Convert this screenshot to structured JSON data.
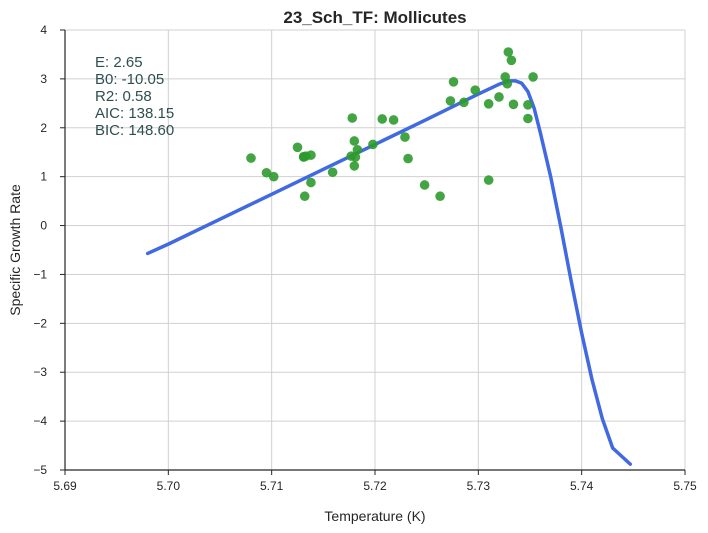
{
  "chart_data": {
    "type": "scatter",
    "title": "23_Sch_TF: Mollicutes",
    "xlabel": "Temperature (K)",
    "ylabel": "Specific Growth Rate",
    "xlim": [
      5.69,
      5.75
    ],
    "ylim": [
      -5,
      4
    ],
    "x_ticks": [
      "5.69",
      "5.70",
      "5.71",
      "5.72",
      "5.73",
      "5.74",
      "5.75"
    ],
    "y_ticks": [
      "4",
      "3",
      "2",
      "1",
      "0",
      "−1",
      "−2",
      "−3",
      "−4",
      "−5"
    ],
    "x_tick_values": [
      5.69,
      5.7,
      5.71,
      5.72,
      5.73,
      5.74,
      5.75
    ],
    "y_tick_values": [
      4,
      3,
      2,
      1,
      0,
      -1,
      -2,
      -3,
      -4,
      -5
    ],
    "grid": true,
    "annotations": [
      "E:  2.65",
      "B0:  -10.05",
      "R2:  0.58",
      "AIC: 138.15",
      "BIC: 148.60"
    ],
    "series": [
      {
        "type": "scatter",
        "color": "#2e9a2e",
        "points": [
          [
            5.708,
            1.38
          ],
          [
            5.7095,
            1.08
          ],
          [
            5.7102,
            1.0
          ],
          [
            5.7125,
            1.6
          ],
          [
            5.7131,
            1.4
          ],
          [
            5.7131,
            1.41
          ],
          [
            5.7133,
            1.42
          ],
          [
            5.7138,
            1.44
          ],
          [
            5.7132,
            0.6
          ],
          [
            5.7138,
            0.88
          ],
          [
            5.7159,
            1.09
          ],
          [
            5.7178,
            2.2
          ],
          [
            5.7177,
            1.42
          ],
          [
            5.7181,
            1.4
          ],
          [
            5.718,
            1.73
          ],
          [
            5.7183,
            1.55
          ],
          [
            5.718,
            1.22
          ],
          [
            5.7198,
            1.66
          ],
          [
            5.7207,
            2.18
          ],
          [
            5.7218,
            2.16
          ],
          [
            5.7229,
            1.81
          ],
          [
            5.7232,
            1.37
          ],
          [
            5.7248,
            0.83
          ],
          [
            5.7263,
            0.6
          ],
          [
            5.7273,
            2.55
          ],
          [
            5.7276,
            2.94
          ],
          [
            5.7286,
            2.52
          ],
          [
            5.7297,
            2.77
          ],
          [
            5.731,
            2.49
          ],
          [
            5.732,
            2.63
          ],
          [
            5.7326,
            3.04
          ],
          [
            5.7328,
            2.9
          ],
          [
            5.7329,
            3.55
          ],
          [
            5.7332,
            3.38
          ],
          [
            5.7334,
            2.48
          ],
          [
            5.7348,
            2.47
          ],
          [
            5.7348,
            2.19
          ],
          [
            5.7353,
            3.04
          ],
          [
            5.731,
            0.93
          ]
        ]
      },
      {
        "type": "line",
        "color": "#4169e1",
        "points": [
          [
            5.698,
            -0.57
          ],
          [
            5.7,
            -0.38
          ],
          [
            5.705,
            0.13
          ],
          [
            5.71,
            0.64
          ],
          [
            5.715,
            1.15
          ],
          [
            5.72,
            1.66
          ],
          [
            5.725,
            2.17
          ],
          [
            5.73,
            2.69
          ],
          [
            5.732,
            2.89
          ],
          [
            5.733,
            2.96
          ],
          [
            5.7336,
            2.96
          ],
          [
            5.7342,
            2.91
          ],
          [
            5.7348,
            2.74
          ],
          [
            5.7354,
            2.4
          ],
          [
            5.736,
            1.9
          ],
          [
            5.737,
            1.0
          ],
          [
            5.738,
            -0.05
          ],
          [
            5.739,
            -1.15
          ],
          [
            5.74,
            -2.2
          ],
          [
            5.741,
            -3.15
          ],
          [
            5.742,
            -3.95
          ],
          [
            5.743,
            -4.55
          ],
          [
            5.7447,
            -4.88
          ]
        ]
      }
    ]
  }
}
